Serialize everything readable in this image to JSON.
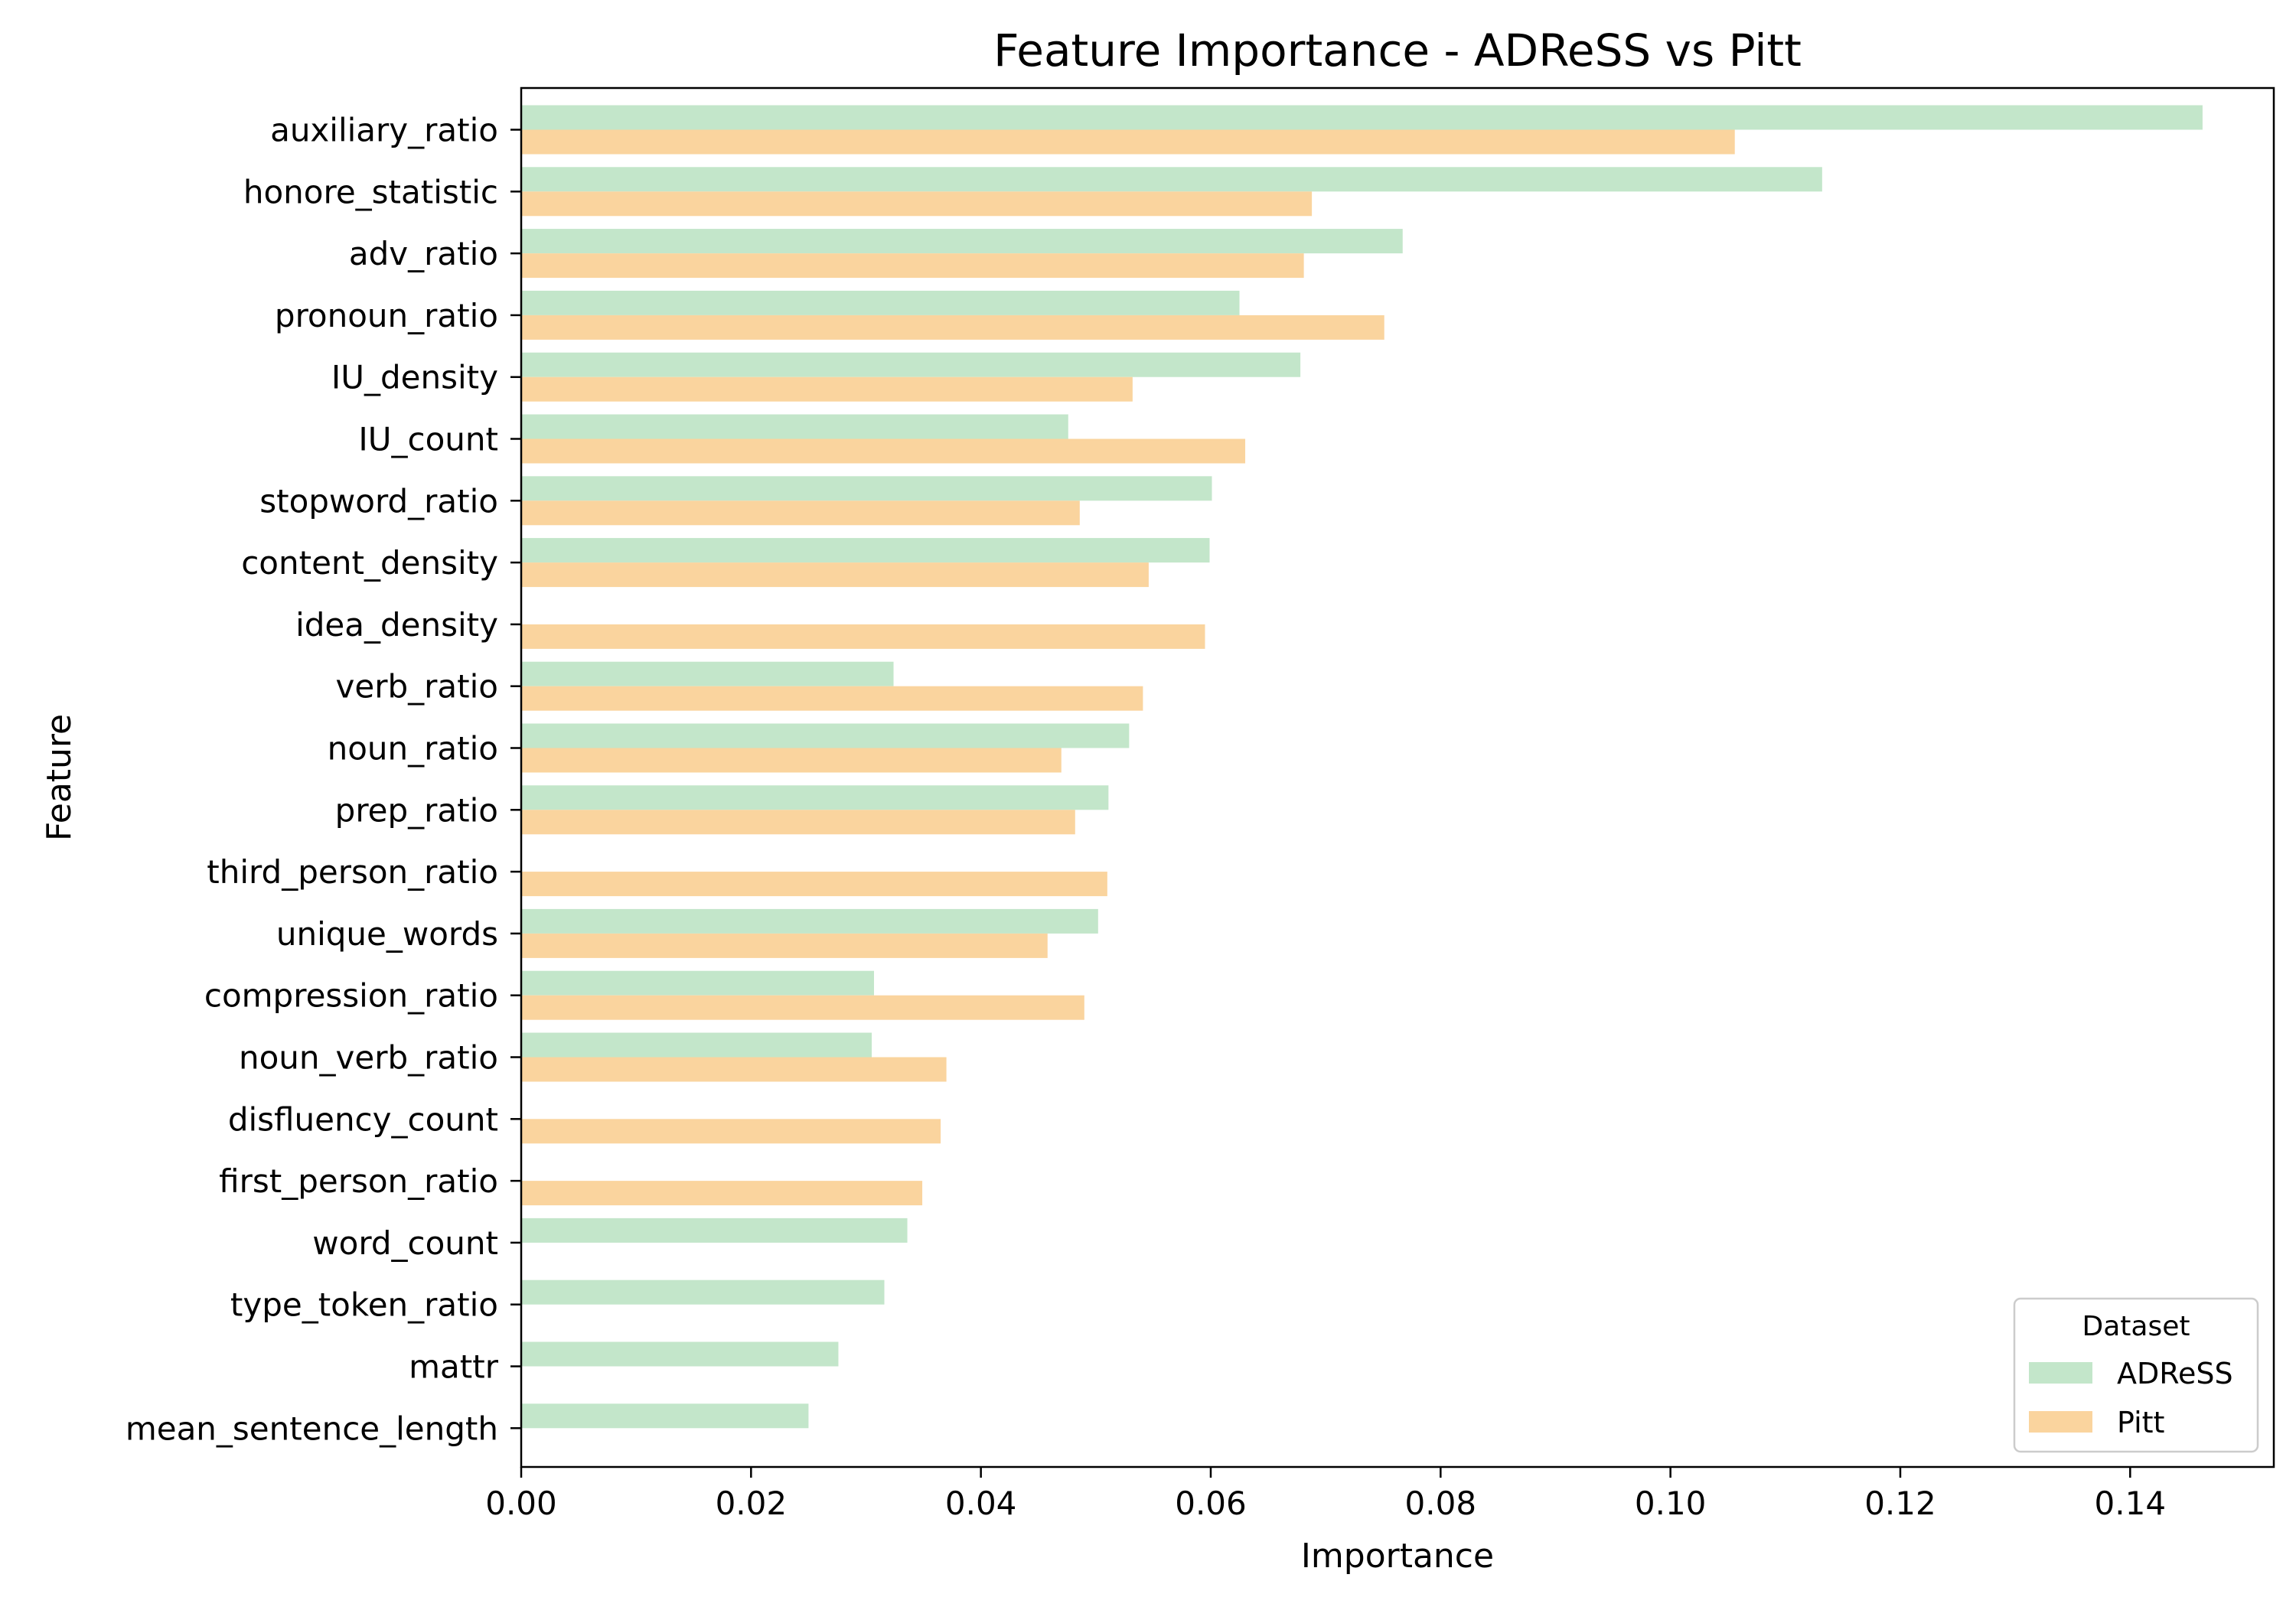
{
  "chart_data": {
    "type": "bar",
    "orientation": "horizontal",
    "title": "Feature Importance - ADReSS vs Pitt",
    "xlabel": "Importance",
    "ylabel": "Feature",
    "xlim": [
      0,
      0.1525
    ],
    "xticks": [
      "0.00",
      "0.02",
      "0.04",
      "0.06",
      "0.08",
      "0.10",
      "0.12",
      "0.14"
    ],
    "categories": [
      "auxiliary_ratio",
      "honore_statistic",
      "adv_ratio",
      "pronoun_ratio",
      "IU_density",
      "IU_count",
      "stopword_ratio",
      "content_density",
      "idea_density",
      "verb_ratio",
      "noun_ratio",
      "prep_ratio",
      "third_person_ratio",
      "unique_words",
      "compression_ratio",
      "noun_verb_ratio",
      "disfluency_count",
      "first_person_ratio",
      "word_count",
      "type_token_ratio",
      "mattr",
      "mean_sentence_length"
    ],
    "series": [
      {
        "name": "ADReSS",
        "color": "#c3e6ca",
        "values": [
          0.1463,
          0.1132,
          0.0767,
          0.0625,
          0.0678,
          0.0476,
          0.0601,
          0.0599,
          null,
          0.0324,
          0.0529,
          0.0511,
          null,
          0.0502,
          0.0307,
          0.0305,
          null,
          null,
          0.0336,
          0.0316,
          0.0276,
          0.025
        ]
      },
      {
        "name": "Pitt",
        "color": "#fad49e",
        "values": [
          0.1056,
          0.0688,
          0.0681,
          0.0751,
          0.0532,
          0.063,
          0.0486,
          0.0546,
          0.0595,
          0.0541,
          0.047,
          0.0482,
          0.051,
          0.0458,
          0.049,
          0.037,
          0.0365,
          0.0349,
          null,
          null,
          null,
          null
        ]
      }
    ],
    "legend": {
      "title": "Dataset",
      "placement": "bottom-right"
    },
    "grid": false
  }
}
